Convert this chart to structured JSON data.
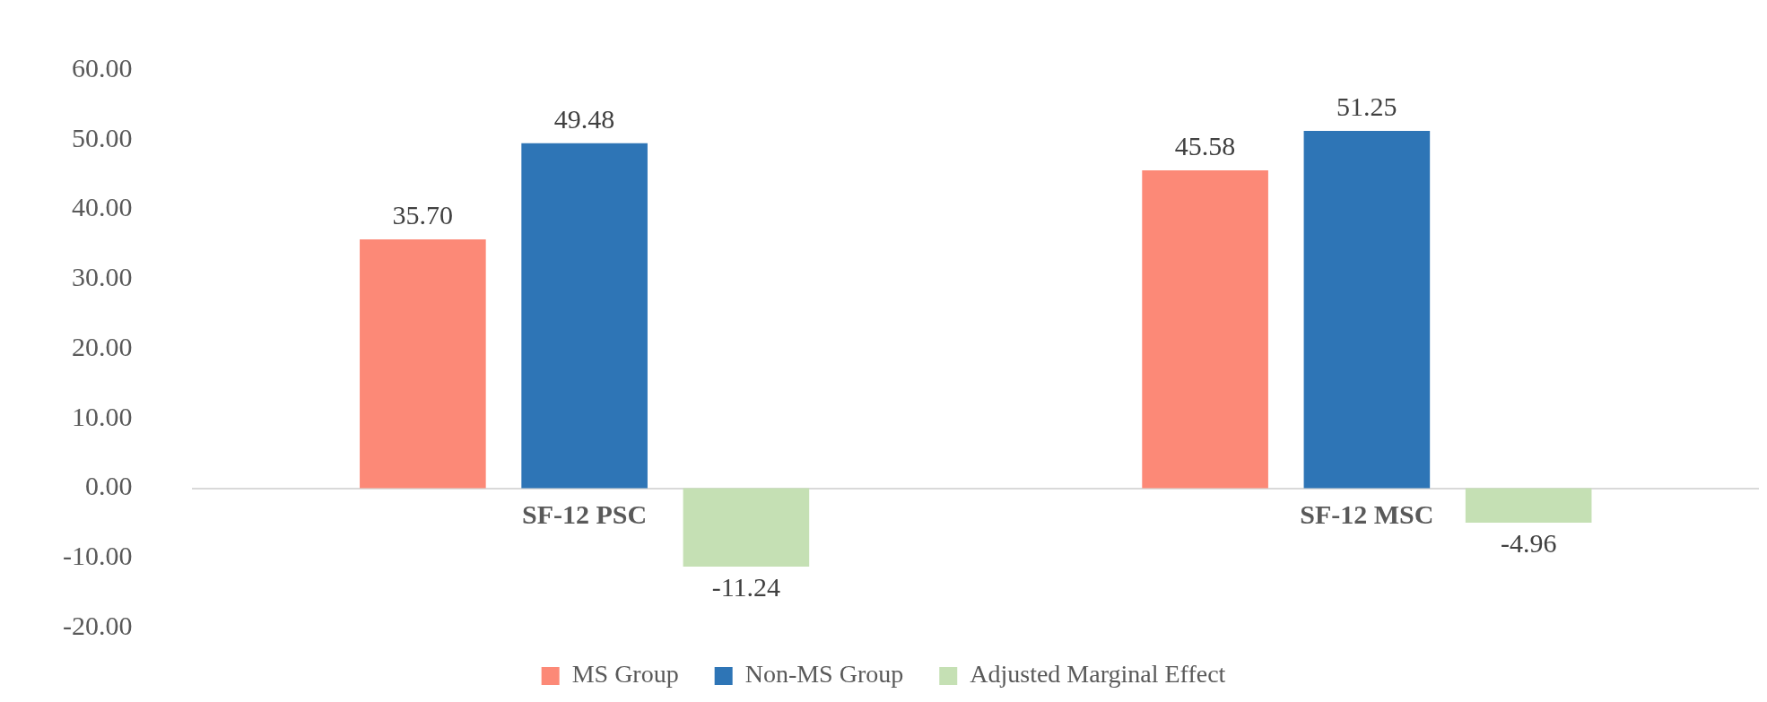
{
  "chart_data": {
    "type": "bar",
    "categories": [
      "SF-12 PSC",
      "SF-12 MSC"
    ],
    "series": [
      {
        "name": "MS Group",
        "color": "#fc8977",
        "values": [
          35.7,
          45.58
        ],
        "value_labels": [
          "35.70",
          "45.58"
        ]
      },
      {
        "name": "Non-MS Group",
        "color": "#2e75b6",
        "values": [
          49.48,
          51.25
        ],
        "value_labels": [
          "49.48",
          "51.25"
        ]
      },
      {
        "name": "Adjusted Marginal Effect",
        "color": "#c5e0b4",
        "values": [
          -11.24,
          -4.96
        ],
        "value_labels": [
          "-11.24",
          "-4.96"
        ]
      }
    ],
    "ylim": [
      -20,
      60
    ],
    "yticks": [
      {
        "value": -20,
        "label": "-20.00"
      },
      {
        "value": -10,
        "label": "-10.00"
      },
      {
        "value": 0,
        "label": "0.00"
      },
      {
        "value": 10,
        "label": "10.00"
      },
      {
        "value": 20,
        "label": "20.00"
      },
      {
        "value": 30,
        "label": "30.00"
      },
      {
        "value": 40,
        "label": "40.00"
      },
      {
        "value": 50,
        "label": "50.00"
      },
      {
        "value": 60,
        "label": "60.00"
      }
    ],
    "grid": false,
    "legend": "bottom"
  }
}
